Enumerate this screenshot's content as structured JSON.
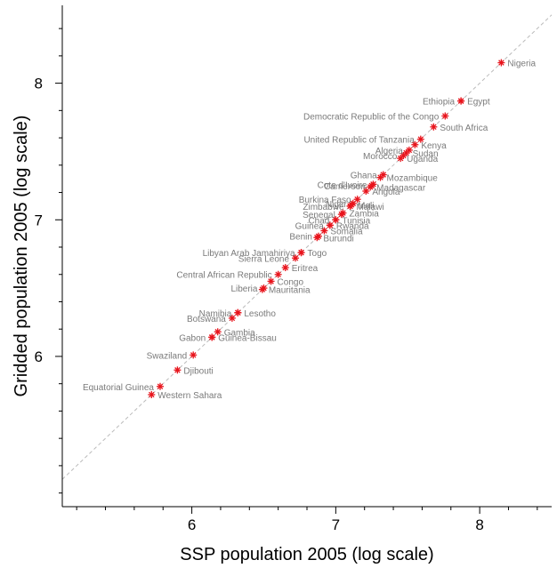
{
  "chart_data": {
    "type": "scatter",
    "xlabel": "SSP population 2005 (log scale)",
    "ylabel": "Gridded population 2005 (log scale)",
    "xlim": [
      5.1,
      8.5
    ],
    "ylim": [
      4.9,
      8.57
    ],
    "xticks": [
      6,
      7,
      8
    ],
    "yticks": [
      6,
      7,
      8
    ],
    "x_minor_step": 0.2,
    "y_minor_step": 0.2,
    "grid": false,
    "reference_line": "y = x",
    "marker": "asterisk",
    "marker_color": "#e8141c",
    "label_color": "#7a7a7a",
    "points": [
      {
        "label": "Nigeria",
        "x": 8.15,
        "y": 8.15,
        "pos": "right"
      },
      {
        "label": "Ethiopia",
        "x": 7.87,
        "y": 7.87,
        "pos": "left"
      },
      {
        "label": "Egypt",
        "x": 7.87,
        "y": 7.87,
        "pos": "right"
      },
      {
        "label": "Democratic Republic of the Congo",
        "x": 7.76,
        "y": 7.76,
        "pos": "left"
      },
      {
        "label": "South Africa",
        "x": 7.68,
        "y": 7.68,
        "pos": "right"
      },
      {
        "label": "United Republic of Tanzania",
        "x": 7.59,
        "y": 7.59,
        "pos": "left"
      },
      {
        "label": "Kenya",
        "x": 7.55,
        "y": 7.55,
        "pos": "right"
      },
      {
        "label": "Algeria",
        "x": 7.51,
        "y": 7.51,
        "pos": "left"
      },
      {
        "label": "Sudan",
        "x": 7.49,
        "y": 7.49,
        "pos": "right"
      },
      {
        "label": "Morocco",
        "x": 7.47,
        "y": 7.47,
        "pos": "left"
      },
      {
        "label": "Uganda",
        "x": 7.45,
        "y": 7.45,
        "pos": "right"
      },
      {
        "label": "Ghana",
        "x": 7.33,
        "y": 7.33,
        "pos": "left"
      },
      {
        "label": "Mozambique",
        "x": 7.31,
        "y": 7.31,
        "pos": "right"
      },
      {
        "label": "Cote d'Ivoire",
        "x": 7.26,
        "y": 7.26,
        "pos": "left"
      },
      {
        "label": "Cameroon",
        "x": 7.25,
        "y": 7.25,
        "pos": "left"
      },
      {
        "label": "Madagascar",
        "x": 7.24,
        "y": 7.24,
        "pos": "right"
      },
      {
        "label": "Angola",
        "x": 7.21,
        "y": 7.21,
        "pos": "right"
      },
      {
        "label": "Burkina Faso",
        "x": 7.15,
        "y": 7.15,
        "pos": "left"
      },
      {
        "label": "Niger",
        "x": 7.12,
        "y": 7.12,
        "pos": "left"
      },
      {
        "label": "Mali",
        "x": 7.11,
        "y": 7.11,
        "pos": "right"
      },
      {
        "label": "Zimbabwe",
        "x": 7.1,
        "y": 7.1,
        "pos": "left"
      },
      {
        "label": "Malawi",
        "x": 7.1,
        "y": 7.1,
        "pos": "right"
      },
      {
        "label": "Zambia",
        "x": 7.05,
        "y": 7.05,
        "pos": "right"
      },
      {
        "label": "Senegal",
        "x": 7.04,
        "y": 7.04,
        "pos": "left"
      },
      {
        "label": "Chad",
        "x": 7.0,
        "y": 7.0,
        "pos": "left"
      },
      {
        "label": "Tunisia",
        "x": 7.0,
        "y": 7.0,
        "pos": "right"
      },
      {
        "label": "Guinea",
        "x": 6.96,
        "y": 6.96,
        "pos": "left"
      },
      {
        "label": "Rwanda",
        "x": 6.96,
        "y": 6.96,
        "pos": "right"
      },
      {
        "label": "Somalia",
        "x": 6.92,
        "y": 6.92,
        "pos": "right"
      },
      {
        "label": "Benin",
        "x": 6.88,
        "y": 6.88,
        "pos": "left"
      },
      {
        "label": "Burundi",
        "x": 6.87,
        "y": 6.87,
        "pos": "right"
      },
      {
        "label": "Libyan Arab Jamahiriya",
        "x": 6.76,
        "y": 6.76,
        "pos": "left"
      },
      {
        "label": "Togo",
        "x": 6.76,
        "y": 6.76,
        "pos": "right"
      },
      {
        "label": "Sierra Leone",
        "x": 6.72,
        "y": 6.72,
        "pos": "left"
      },
      {
        "label": "Eritrea",
        "x": 6.65,
        "y": 6.65,
        "pos": "right"
      },
      {
        "label": "Central African Republic",
        "x": 6.6,
        "y": 6.6,
        "pos": "left"
      },
      {
        "label": "Congo",
        "x": 6.55,
        "y": 6.55,
        "pos": "right"
      },
      {
        "label": "Liberia",
        "x": 6.5,
        "y": 6.5,
        "pos": "left"
      },
      {
        "label": "Mauritania",
        "x": 6.49,
        "y": 6.49,
        "pos": "right"
      },
      {
        "label": "Namibia",
        "x": 6.32,
        "y": 6.32,
        "pos": "left"
      },
      {
        "label": "Lesotho",
        "x": 6.32,
        "y": 6.32,
        "pos": "right"
      },
      {
        "label": "Botswana",
        "x": 6.28,
        "y": 6.28,
        "pos": "left"
      },
      {
        "label": "Gambia",
        "x": 6.18,
        "y": 6.18,
        "pos": "right"
      },
      {
        "label": "Gabon",
        "x": 6.14,
        "y": 6.14,
        "pos": "left"
      },
      {
        "label": "Guinea-Bissau",
        "x": 6.14,
        "y": 6.14,
        "pos": "right"
      },
      {
        "label": "Swaziland",
        "x": 6.01,
        "y": 6.01,
        "pos": "left"
      },
      {
        "label": "Djibouti",
        "x": 5.9,
        "y": 5.9,
        "pos": "right"
      },
      {
        "label": "Equatorial Guinea",
        "x": 5.78,
        "y": 5.78,
        "pos": "left"
      },
      {
        "label": "Western Sahara",
        "x": 5.72,
        "y": 5.72,
        "pos": "right"
      }
    ]
  }
}
